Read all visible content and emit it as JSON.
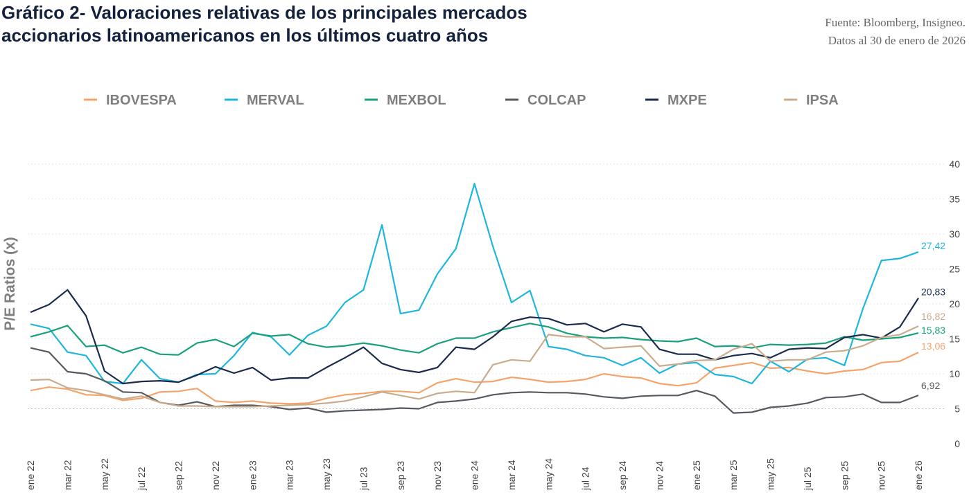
{
  "header": {
    "title_line1": "Gráfico 2- Valoraciones relativas de los principales mercados",
    "title_line2": "accionarios latinoamericanos en los últimos cuatro años",
    "source_line1": "Fuente: Bloomberg, Insigneo.",
    "source_line2": "Datos al 30 de enero de 2026"
  },
  "chart_data": {
    "type": "line",
    "ylabel": "P/E Ratios (x)",
    "xlabel": "",
    "ylim": [
      0,
      40
    ],
    "yticks": [
      0,
      5,
      10,
      15,
      20,
      25,
      30,
      35,
      40
    ],
    "grid": "dotted horizontal",
    "legend_position": "top",
    "x_tick_labels": [
      "ene 22",
      "mar 22",
      "may 22",
      "jul 22",
      "sep 22",
      "nov 22",
      "ene 23",
      "mar 23",
      "may 23",
      "jul 23",
      "sep 23",
      "nov 23",
      "ene 24",
      "mar 24",
      "may 24",
      "jul 24",
      "sep 24",
      "nov 24",
      "ene 25",
      "mar 25",
      "may 25",
      "jul 25",
      "sep 25",
      "nov 25",
      "ene 26"
    ],
    "x": [
      "ene 22",
      "feb 22",
      "mar 22",
      "abr 22",
      "may 22",
      "jun 22",
      "jul 22",
      "ago 22",
      "sep 22",
      "oct 22",
      "nov 22",
      "dic 22",
      "ene 23",
      "feb 23",
      "mar 23",
      "abr 23",
      "may 23",
      "jun 23",
      "jul 23",
      "ago 23",
      "sep 23",
      "oct 23",
      "nov 23",
      "dic 23",
      "ene 24",
      "feb 24",
      "mar 24",
      "abr 24",
      "may 24",
      "jun 24",
      "jul 24",
      "ago 24",
      "sep 24",
      "oct 24",
      "nov 24",
      "dic 24",
      "ene 25",
      "feb 25",
      "mar 25",
      "abr 25",
      "may 25",
      "jun 25",
      "jul 25",
      "ago 25",
      "sep 25",
      "oct 25",
      "nov 25",
      "dic 25",
      "ene 26"
    ],
    "series": [
      {
        "name": "IBOVESPA",
        "color": "#f4a46a",
        "end_label": "13,06",
        "values": [
          7.6,
          8.1,
          7.8,
          7.0,
          6.9,
          6.2,
          6.5,
          7.4,
          7.5,
          7.9,
          6.1,
          5.9,
          6.1,
          5.8,
          5.7,
          5.8,
          6.5,
          7.0,
          7.2,
          7.5,
          7.5,
          7.3,
          8.7,
          9.3,
          8.8,
          8.9,
          9.5,
          9.2,
          8.8,
          8.9,
          9.2,
          10.0,
          9.6,
          9.4,
          8.6,
          8.3,
          8.7,
          10.8,
          11.2,
          11.6,
          10.8,
          10.9,
          10.4,
          10.0,
          10.4,
          10.6,
          11.6,
          11.8,
          13.06
        ]
      },
      {
        "name": "MERVAL",
        "color": "#1eb6dc",
        "end_label": "27,42",
        "values": [
          17.1,
          16.5,
          13.1,
          12.6,
          8.9,
          8.6,
          12.0,
          9.3,
          8.8,
          9.9,
          10.0,
          12.6,
          15.9,
          15.3,
          12.7,
          15.5,
          16.8,
          20.2,
          22.0,
          31.3,
          18.6,
          19.1,
          24.3,
          27.9,
          37.2,
          28.2,
          20.2,
          21.9,
          13.9,
          13.5,
          12.6,
          12.3,
          11.2,
          12.3,
          10.1,
          11.4,
          11.6,
          9.9,
          9.6,
          8.6,
          11.8,
          10.3,
          12.1,
          12.3,
          11.2,
          19.3,
          26.2,
          26.5,
          27.42
        ]
      },
      {
        "name": "MEXBOL",
        "color": "#19a07c",
        "end_label": "15,83",
        "values": [
          15.3,
          16.0,
          16.9,
          13.9,
          14.1,
          13.0,
          13.8,
          12.8,
          12.7,
          14.4,
          14.9,
          13.9,
          15.8,
          15.4,
          15.6,
          14.3,
          13.8,
          14.0,
          14.4,
          14.0,
          13.4,
          13.0,
          14.3,
          15.1,
          15.1,
          16.0,
          16.6,
          17.2,
          16.7,
          15.8,
          15.3,
          15.1,
          15.2,
          14.9,
          14.7,
          14.6,
          15.1,
          13.9,
          14.0,
          13.7,
          14.2,
          14.1,
          14.2,
          14.4,
          15.3,
          14.8,
          15.0,
          15.2,
          15.83
        ]
      },
      {
        "name": "COLCAP",
        "color": "#555a61",
        "end_label": "6,92",
        "values": [
          13.7,
          13.1,
          10.3,
          10.0,
          9.0,
          7.4,
          7.3,
          5.9,
          5.5,
          6.0,
          5.3,
          5.5,
          5.5,
          5.3,
          4.9,
          5.1,
          4.5,
          4.7,
          4.8,
          4.9,
          5.1,
          5.0,
          5.9,
          6.1,
          6.4,
          7.0,
          7.3,
          7.4,
          7.3,
          7.3,
          7.1,
          6.7,
          6.5,
          6.8,
          6.9,
          6.9,
          7.6,
          6.8,
          4.4,
          4.5,
          5.2,
          5.4,
          5.8,
          6.6,
          6.7,
          7.1,
          5.9,
          5.9,
          6.92
        ]
      },
      {
        "name": "MXPE",
        "color": "#1a2b4c",
        "end_label": "20,83",
        "values": [
          18.8,
          19.9,
          22.0,
          18.3,
          10.4,
          8.6,
          8.9,
          9.0,
          8.8,
          9.8,
          11.0,
          10.1,
          10.9,
          9.1,
          9.4,
          9.4,
          10.9,
          12.3,
          13.8,
          11.5,
          10.6,
          10.2,
          10.9,
          13.8,
          13.5,
          15.3,
          17.5,
          18.1,
          17.9,
          17.0,
          17.2,
          16.0,
          17.1,
          16.7,
          13.5,
          12.8,
          12.8,
          12.0,
          12.6,
          12.9,
          12.3,
          13.5,
          13.7,
          13.6,
          15.2,
          15.6,
          15.1,
          16.7,
          20.83
        ]
      },
      {
        "name": "IPSA",
        "color": "#c9ac8c",
        "end_label": "16,82",
        "values": [
          9.1,
          9.2,
          8.0,
          7.6,
          7.0,
          6.4,
          6.8,
          5.9,
          5.4,
          5.4,
          5.3,
          5.3,
          5.3,
          5.4,
          5.5,
          5.6,
          5.8,
          6.1,
          6.7,
          7.4,
          6.9,
          6.4,
          7.2,
          7.5,
          7.3,
          11.3,
          12.0,
          11.8,
          15.6,
          15.3,
          15.3,
          13.6,
          13.8,
          14.0,
          11.1,
          11.4,
          11.9,
          12.0,
          13.5,
          14.3,
          11.8,
          12.0,
          12.0,
          13.1,
          13.3,
          14.0,
          15.2,
          15.6,
          16.82
        ]
      }
    ]
  }
}
